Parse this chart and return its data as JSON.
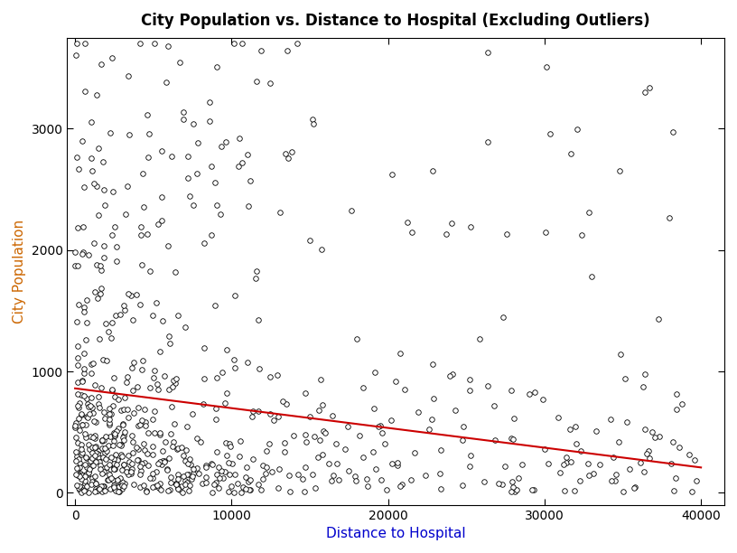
{
  "title": "City Population vs. Distance to Hospital (Excluding Outliers)",
  "xlabel": "Distance to Hospital",
  "ylabel": "City Population",
  "xlabel_color": "#0000CC",
  "ylabel_color": "#CC6600",
  "title_fontsize": 12,
  "axis_label_fontsize": 11,
  "xlim": [
    -500,
    41500
  ],
  "ylim": [
    -100,
    3750
  ],
  "xticks": [
    0,
    10000,
    20000,
    30000,
    40000
  ],
  "yticks": [
    0,
    1000,
    2000,
    3000
  ],
  "regression_intercept": 860,
  "regression_slope": -0.0163,
  "regression_color": "#CC0000",
  "marker_color": "black",
  "marker_face": "white",
  "marker_size": 4,
  "background_color": "white",
  "seed": 7,
  "n_points": 700
}
